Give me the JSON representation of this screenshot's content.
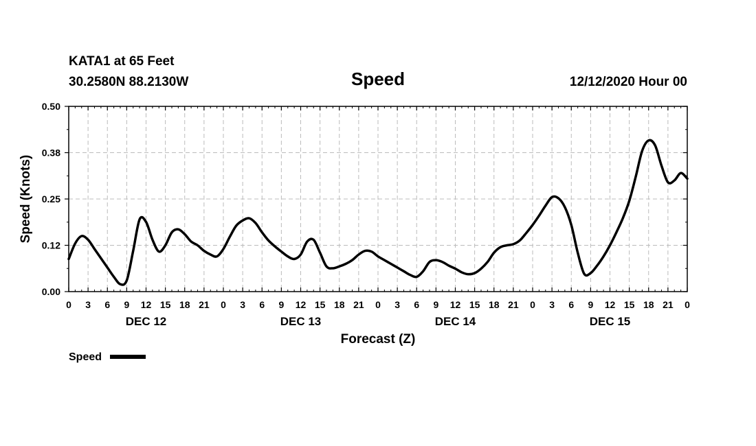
{
  "header": {
    "station": "KATA1 at 65 Feet",
    "coords": "30.2580N 88.2130W",
    "title": "Speed",
    "datetime": "12/12/2020 Hour 00"
  },
  "legend": {
    "label": "Speed",
    "position": "bottom-left"
  },
  "colors": {
    "line": "#000000",
    "grid": "#bbbbbb"
  },
  "chart_data": {
    "type": "line",
    "title": "Speed",
    "xlabel": "Forecast (Z)",
    "ylabel": "Speed (Knots)",
    "xlim": [
      0,
      96
    ],
    "ylim": [
      0,
      0.5
    ],
    "grid": true,
    "y_ticks": [
      0.0,
      0.125,
      0.25,
      0.375,
      0.5
    ],
    "y_tick_labels": [
      "0.00",
      "0.12",
      "0.25",
      "0.38",
      "0.50"
    ],
    "x_ticks": [
      0,
      3,
      6,
      9,
      12,
      15,
      18,
      21,
      24,
      27,
      30,
      33,
      36,
      39,
      42,
      45,
      48,
      51,
      54,
      57,
      60,
      63,
      66,
      69,
      72,
      75,
      78,
      81,
      84,
      87,
      90,
      93,
      96
    ],
    "x_tick_labels": [
      "0",
      "3",
      "6",
      "9",
      "12",
      "15",
      "18",
      "21",
      "0",
      "3",
      "6",
      "9",
      "12",
      "15",
      "18",
      "21",
      "0",
      "3",
      "6",
      "9",
      "12",
      "15",
      "18",
      "21",
      "0",
      "3",
      "6",
      "9",
      "12",
      "15",
      "18",
      "21",
      "0"
    ],
    "day_labels": [
      {
        "label": "DEC 12",
        "x": 12
      },
      {
        "label": "DEC 13",
        "x": 36
      },
      {
        "label": "DEC 14",
        "x": 60
      },
      {
        "label": "DEC 15",
        "x": 84
      }
    ],
    "series": [
      {
        "name": "Speed",
        "x": [
          0,
          1,
          2,
          3,
          4,
          5,
          6,
          7,
          8,
          9,
          10,
          11,
          12,
          13,
          14,
          15,
          16,
          17,
          18,
          19,
          20,
          21,
          22,
          23,
          24,
          25,
          26,
          27,
          28,
          29,
          30,
          31,
          32,
          33,
          34,
          35,
          36,
          37,
          38,
          39,
          40,
          41,
          42,
          43,
          44,
          45,
          46,
          47,
          48,
          49,
          50,
          51,
          52,
          53,
          54,
          55,
          56,
          57,
          58,
          59,
          60,
          61,
          62,
          63,
          64,
          65,
          66,
          67,
          68,
          69,
          70,
          71,
          72,
          73,
          74,
          75,
          76,
          77,
          78,
          79,
          80,
          81,
          82,
          83,
          84,
          85,
          86,
          87,
          88,
          89,
          90,
          91,
          92,
          93,
          94,
          95,
          96
        ],
        "values": [
          0.088,
          0.13,
          0.15,
          0.14,
          0.115,
          0.09,
          0.065,
          0.04,
          0.02,
          0.03,
          0.11,
          0.195,
          0.188,
          0.14,
          0.108,
          0.125,
          0.16,
          0.168,
          0.155,
          0.135,
          0.125,
          0.11,
          0.1,
          0.095,
          0.115,
          0.148,
          0.178,
          0.192,
          0.198,
          0.185,
          0.16,
          0.138,
          0.122,
          0.108,
          0.095,
          0.088,
          0.1,
          0.135,
          0.14,
          0.105,
          0.068,
          0.063,
          0.068,
          0.075,
          0.085,
          0.1,
          0.11,
          0.108,
          0.095,
          0.085,
          0.075,
          0.065,
          0.055,
          0.045,
          0.04,
          0.055,
          0.08,
          0.085,
          0.08,
          0.07,
          0.062,
          0.052,
          0.047,
          0.05,
          0.062,
          0.08,
          0.105,
          0.12,
          0.125,
          0.128,
          0.138,
          0.158,
          0.18,
          0.205,
          0.232,
          0.255,
          0.252,
          0.228,
          0.18,
          0.105,
          0.048,
          0.05,
          0.07,
          0.095,
          0.125,
          0.16,
          0.198,
          0.245,
          0.31,
          0.38,
          0.408,
          0.395,
          0.34,
          0.295,
          0.3,
          0.32,
          0.305
        ]
      }
    ]
  }
}
